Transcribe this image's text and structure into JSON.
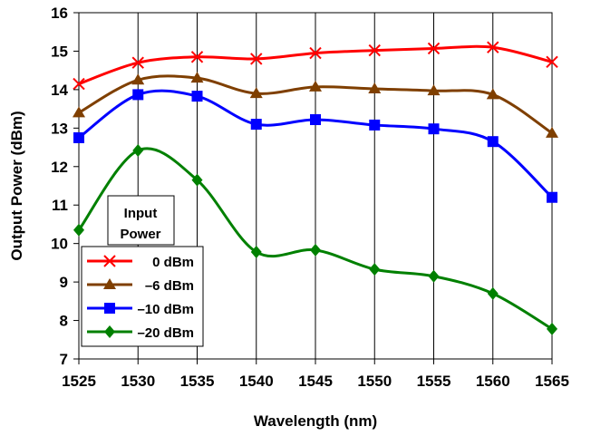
{
  "chart_data": {
    "type": "line",
    "title": "",
    "xlabel": "Wavelength (nm)",
    "ylabel": "Output Power (dBm)",
    "x": [
      1525,
      1530,
      1535,
      1540,
      1545,
      1550,
      1555,
      1560,
      1565
    ],
    "xlim": [
      1525,
      1565
    ],
    "ylim": [
      7,
      16
    ],
    "x_ticks": [
      "1525",
      "1530",
      "1535",
      "1540",
      "1545",
      "1550",
      "1555",
      "1560",
      "1565"
    ],
    "y_ticks": [
      "7",
      "8",
      "9",
      "10",
      "11",
      "12",
      "13",
      "14",
      "15",
      "16"
    ],
    "grid": "vertical",
    "legend": {
      "title_line1": "Input",
      "title_line2": "Power",
      "placement": "lower-left"
    },
    "series": [
      {
        "name": "0 dBm",
        "color": "#ff0000",
        "marker": "x",
        "values": [
          14.15,
          14.7,
          14.85,
          14.8,
          14.95,
          15.02,
          15.07,
          15.1,
          14.72
        ]
      },
      {
        "name": "–6 dBm",
        "color": "#7f3f00",
        "marker": "triangle",
        "values": [
          13.4,
          14.25,
          14.3,
          13.9,
          14.07,
          14.02,
          13.97,
          13.87,
          12.87
        ]
      },
      {
        "name": "–10 dBm",
        "color": "#0000ff",
        "marker": "square",
        "values": [
          12.75,
          13.87,
          13.83,
          13.1,
          13.22,
          13.08,
          12.98,
          12.65,
          11.2
        ]
      },
      {
        "name": "–20 dBm",
        "color": "#008000",
        "marker": "diamond",
        "values": [
          10.35,
          12.42,
          11.65,
          9.78,
          9.83,
          9.33,
          9.15,
          8.7,
          7.78
        ]
      }
    ]
  }
}
